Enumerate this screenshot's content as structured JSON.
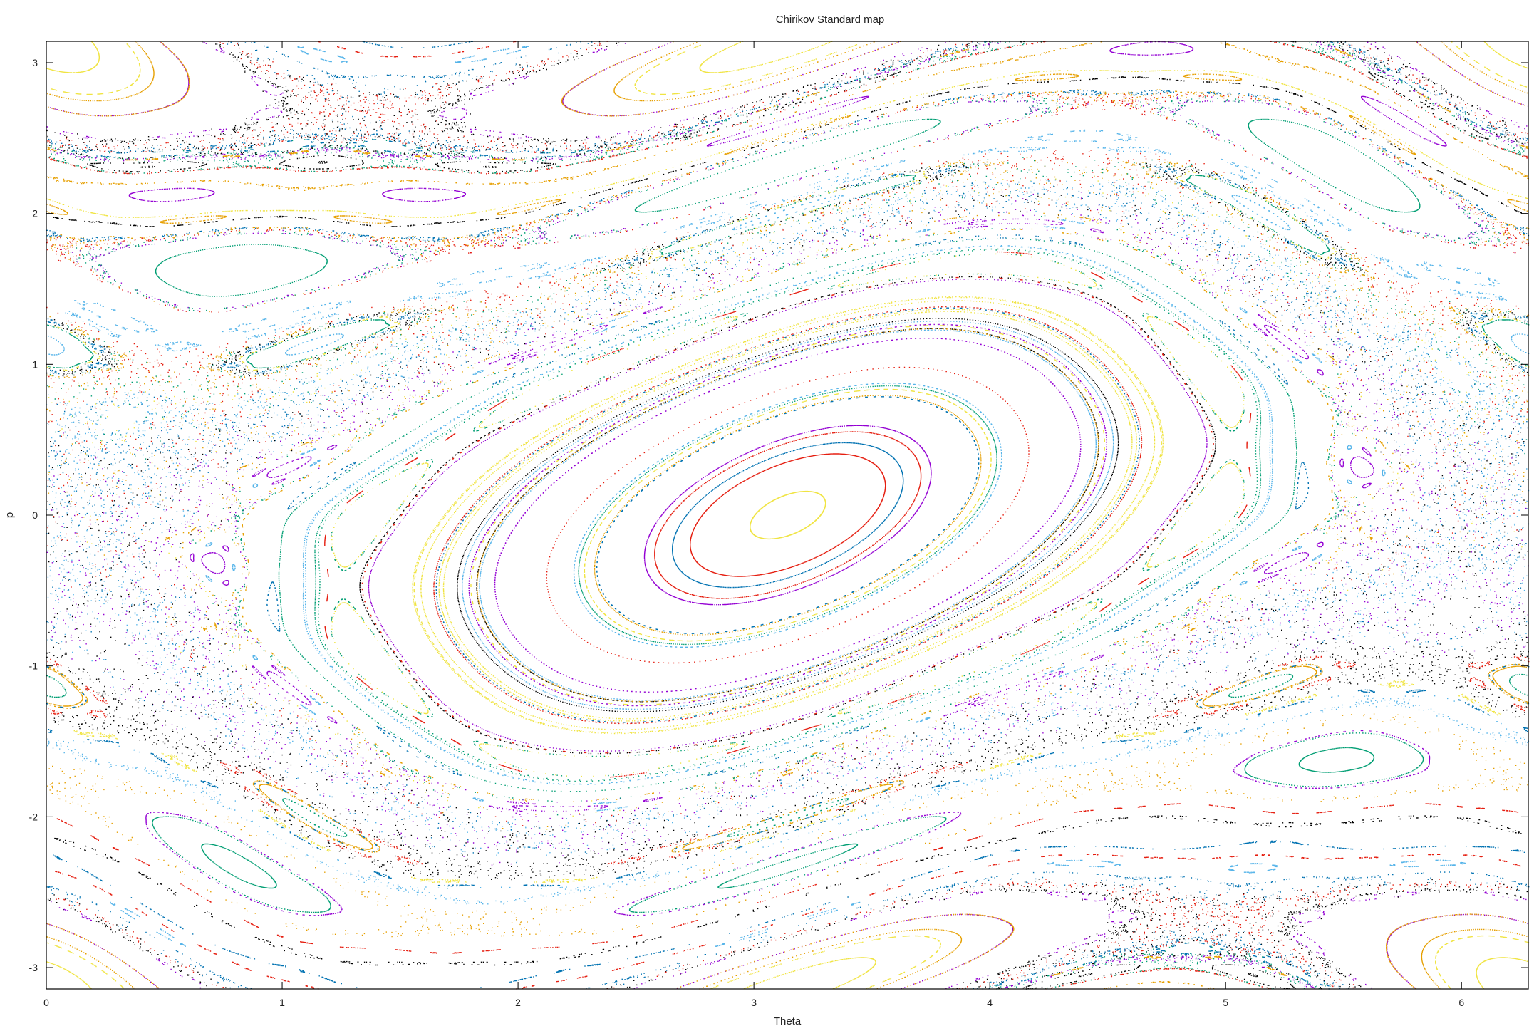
{
  "chart_data": {
    "type": "scatter",
    "title": "Chirikov Standard map",
    "xlabel": "Theta",
    "ylabel": "p",
    "xlim": [
      0,
      6.2832
    ],
    "ylim": [
      -3.1416,
      3.1416
    ],
    "x_ticks": [
      "0",
      "1",
      "2",
      "3",
      "4",
      "5",
      "6"
    ],
    "y_ticks": [
      "-3",
      "-2",
      "-1",
      "0",
      "1",
      "2",
      "3"
    ],
    "legend": "none",
    "grid": false,
    "map": {
      "K": 0.971635,
      "orbits": 120,
      "iterations_per_orbit": 700
    },
    "palette": [
      "#9400d3",
      "#009e73",
      "#56b4e9",
      "#e69f00",
      "#f0e442",
      "#0072b2",
      "#e51e10",
      "#000000"
    ]
  }
}
